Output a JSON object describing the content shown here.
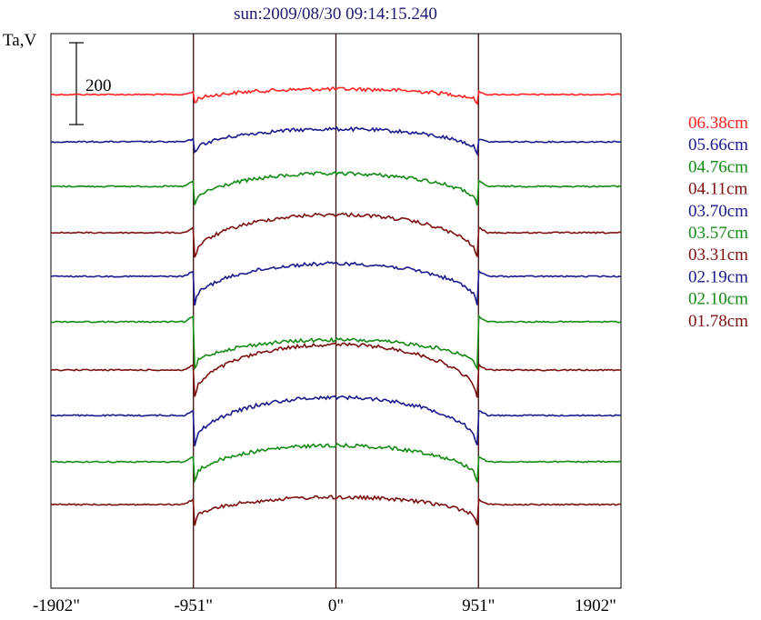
{
  "chart_data": {
    "type": "line",
    "title": "sun:2009/08/30 09:14:15.240",
    "ylabel": "Ta,V",
    "xlim": [
      -1902,
      1902
    ],
    "x_ticks": [
      "-1902\"",
      "-951\"",
      "0\"",
      "951\"",
      "1902\""
    ],
    "x_tick_values": [
      -1902,
      -951,
      0,
      951,
      1902
    ],
    "vertical_markers": [
      -951,
      0,
      951
    ],
    "scale_bar": {
      "label": "200",
      "value": 200
    },
    "legend_position": "right",
    "series": [
      {
        "name": "06.38cm",
        "color": "#ff2020",
        "baseline": 104,
        "inner_min": -8,
        "inner_max": 6,
        "edge": "limb"
      },
      {
        "name": "05.66cm",
        "color": "#1a1a8c",
        "baseline": 156,
        "inner_min": -12,
        "inner_max": 14,
        "edge": "limb"
      },
      {
        "name": "04.76cm",
        "color": "#138a13",
        "baseline": 205,
        "inner_min": -20,
        "inner_max": 14,
        "edge": "dip"
      },
      {
        "name": "04.11cm",
        "color": "#7a1010",
        "baseline": 256,
        "inner_min": -28,
        "inner_max": 20,
        "edge": "dip"
      },
      {
        "name": "03.70cm",
        "color": "#1a1a8c",
        "baseline": 304,
        "inner_min": -30,
        "inner_max": 14,
        "edge": "dip"
      },
      {
        "name": "03.57cm",
        "color": "#138a13",
        "baseline": 354,
        "inner_min": -50,
        "inner_max": -20,
        "edge": "dip"
      },
      {
        "name": "03.31cm",
        "color": "#7a1010",
        "baseline": 407,
        "inner_min": -32,
        "inner_max": 28,
        "edge": "dip"
      },
      {
        "name": "02.19cm",
        "color": "#1a1a8c",
        "baseline": 457,
        "inner_min": -34,
        "inner_max": 20,
        "edge": "dip"
      },
      {
        "name": "02.10cm",
        "color": "#138a13",
        "baseline": 508,
        "inner_min": -20,
        "inner_max": 18,
        "edge": "dip"
      },
      {
        "name": "01.78cm",
        "color": "#7a1010",
        "baseline": 555,
        "inner_min": -18,
        "inner_max": 8,
        "edge": "dip"
      }
    ]
  }
}
